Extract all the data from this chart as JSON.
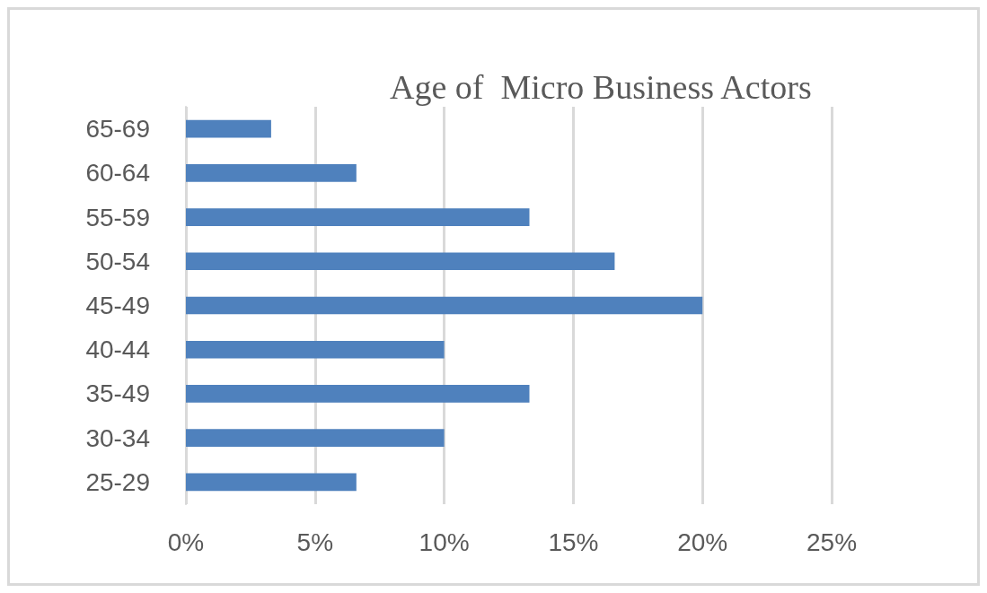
{
  "chart_data": {
    "type": "bar",
    "orientation": "horizontal",
    "title": "Age of  Micro Business Actors",
    "categories": [
      "65-69",
      "60-64",
      "55-59",
      "50-54",
      "45-49",
      "40-44",
      "35-49",
      "30-34",
      "25-29"
    ],
    "values": [
      3.3,
      6.6,
      13.3,
      16.6,
      20,
      10,
      13.3,
      10,
      6.6
    ],
    "color": "#4f81bd",
    "xlim": [
      0,
      25
    ],
    "xticks": [
      {
        "value": 0,
        "label": "0%"
      },
      {
        "value": 5,
        "label": "5%"
      },
      {
        "value": 10,
        "label": "10%"
      },
      {
        "value": 15,
        "label": "15%"
      },
      {
        "value": 20,
        "label": "20%"
      },
      {
        "value": 25,
        "label": "25%"
      }
    ],
    "grid": "x"
  }
}
